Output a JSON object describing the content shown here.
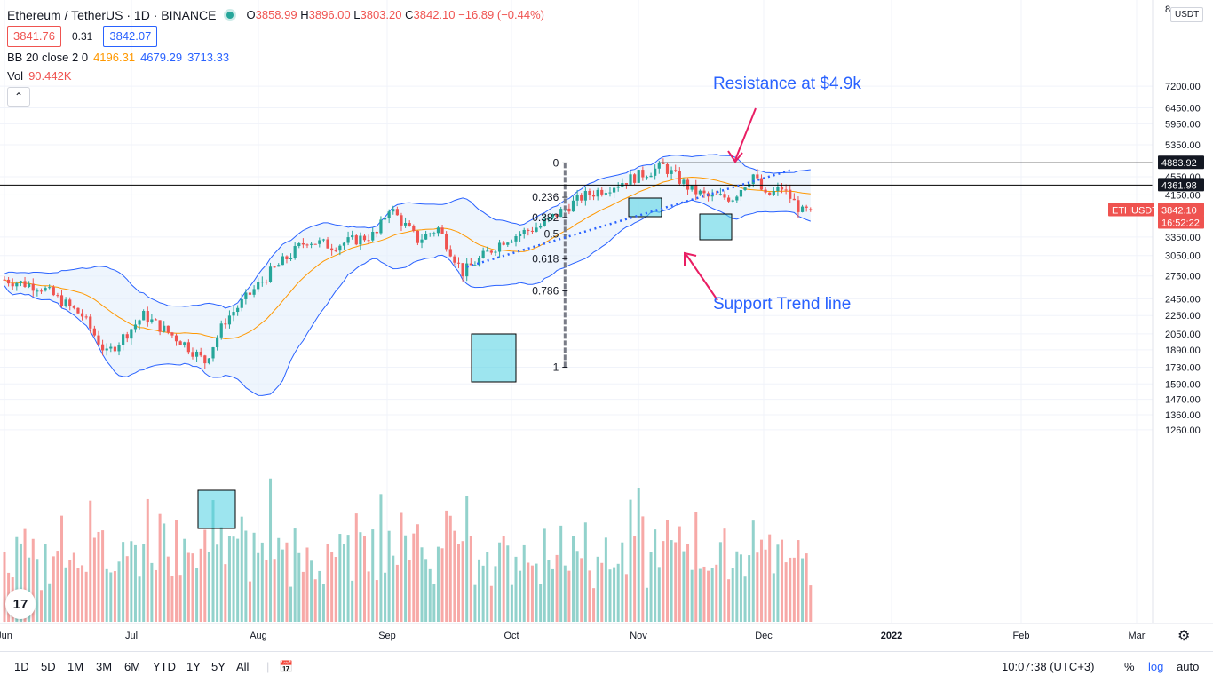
{
  "header": {
    "symbol": "Ethereum / TetherUS · 1D · BINANCE",
    "open_label": "O",
    "open": "3858.99",
    "high_label": "H",
    "high": "3896.00",
    "low_label": "L",
    "low": "3803.20",
    "close_label": "C",
    "close": "3842.10",
    "change": "−16.89 (−0.44%)",
    "bid": "3841.76",
    "spread": "0.31",
    "ask": "3842.07"
  },
  "indicators": {
    "bb_label": "BB 20 close 2 0",
    "bb_basis": "4196.31",
    "bb_upper": "4679.29",
    "bb_lower": "3713.33",
    "vol_label": "Vol",
    "vol_value": "90.442K",
    "collapse_icon": "chevron-up-icon"
  },
  "annotations": {
    "resistance": "Resistance at $4.9k",
    "support": "Support Trend line"
  },
  "price_scale": {
    "currency": "USDT",
    "ticks": [
      "8",
      "7200.00",
      "6450.00",
      "5950.00",
      "5350.00",
      "4550.00",
      "4150.00",
      "3350.00",
      "3050.00",
      "2750.00",
      "2450.00",
      "2250.00",
      "2050.00",
      "1890.00",
      "1730.00",
      "1590.00",
      "1470.00",
      "1360.00",
      "1260.00"
    ],
    "resistance_tag": "4883.92",
    "support_tag": "4361.98",
    "symbol_tag": "ETHUSDT",
    "last_price_tag": "3842.10",
    "countdown_tag": "16:52:22"
  },
  "time_scale": [
    "Jun",
    "Jul",
    "Aug",
    "Sep",
    "Oct",
    "Nov",
    "Dec",
    "2022",
    "Feb",
    "Mar"
  ],
  "bottom_bar": {
    "timeframes": [
      "1D",
      "5D",
      "1M",
      "3M",
      "6M",
      "YTD",
      "1Y",
      "5Y",
      "All"
    ],
    "compare_icon": "calendar-range-icon",
    "clock": "10:07:38 (UTC+3)",
    "percent": "%",
    "log": "log",
    "auto": "auto",
    "settings_icon": "gear-icon"
  },
  "colors": {
    "up": "#26a69a",
    "down": "#ef5350",
    "bb_band": "#2962ff",
    "bb_basis": "#ff9800",
    "band_fill": "#e3eefb",
    "annotation": "#2962ff",
    "arrow": "#e91e63",
    "box": "#4dd0e1"
  },
  "chart_data": {
    "type": "candlestick",
    "title": "Ethereum / TetherUS · 1D · BINANCE",
    "x_ticks": [
      "Jun",
      "Jul",
      "Aug",
      "Sep",
      "Oct",
      "Nov",
      "Dec",
      "2022",
      "Feb",
      "Mar"
    ],
    "y_scale": "log",
    "ylim": [
      1200,
      8000
    ],
    "key_levels": [
      {
        "name": "Resistance",
        "value": 4883.92
      },
      {
        "name": "Support",
        "value": 4361.98
      }
    ],
    "fibonacci": [
      {
        "level": "0",
        "price": 4880
      },
      {
        "level": "0.236",
        "price": 4100
      },
      {
        "level": "0.382",
        "price": 3700
      },
      {
        "level": "0.5",
        "price": 3400
      },
      {
        "level": "0.618",
        "price": 3000
      },
      {
        "level": "0.786",
        "price": 2550
      },
      {
        "level": "1",
        "price": 1730
      }
    ],
    "close_path": [
      {
        "date": "2021-06-01",
        "close": 2700
      },
      {
        "date": "2021-06-10",
        "close": 2600
      },
      {
        "date": "2021-06-20",
        "close": 2250
      },
      {
        "date": "2021-06-26",
        "close": 1850
      },
      {
        "date": "2021-07-05",
        "close": 2250
      },
      {
        "date": "2021-07-15",
        "close": 1950
      },
      {
        "date": "2021-07-20",
        "close": 1780
      },
      {
        "date": "2021-07-25",
        "close": 2200
      },
      {
        "date": "2021-08-05",
        "close": 2800
      },
      {
        "date": "2021-08-14",
        "close": 3300
      },
      {
        "date": "2021-08-20",
        "close": 3200
      },
      {
        "date": "2021-08-31",
        "close": 3400
      },
      {
        "date": "2021-09-03",
        "close": 3900
      },
      {
        "date": "2021-09-10",
        "close": 3300
      },
      {
        "date": "2021-09-15",
        "close": 3500
      },
      {
        "date": "2021-09-21",
        "close": 2800
      },
      {
        "date": "2021-10-01",
        "close": 3300
      },
      {
        "date": "2021-10-10",
        "close": 3550
      },
      {
        "date": "2021-10-20",
        "close": 4100
      },
      {
        "date": "2021-10-29",
        "close": 4400
      },
      {
        "date": "2021-11-09",
        "close": 4800
      },
      {
        "date": "2021-11-16",
        "close": 4250
      },
      {
        "date": "2021-11-20",
        "close": 4100
      },
      {
        "date": "2021-11-26",
        "close": 4100
      },
      {
        "date": "2021-12-01",
        "close": 4600
      },
      {
        "date": "2021-12-04",
        "close": 4100
      },
      {
        "date": "2021-12-08",
        "close": 4300
      },
      {
        "date": "2021-12-13",
        "close": 3800
      },
      {
        "date": "2021-12-15",
        "close": 3842
      }
    ]
  }
}
